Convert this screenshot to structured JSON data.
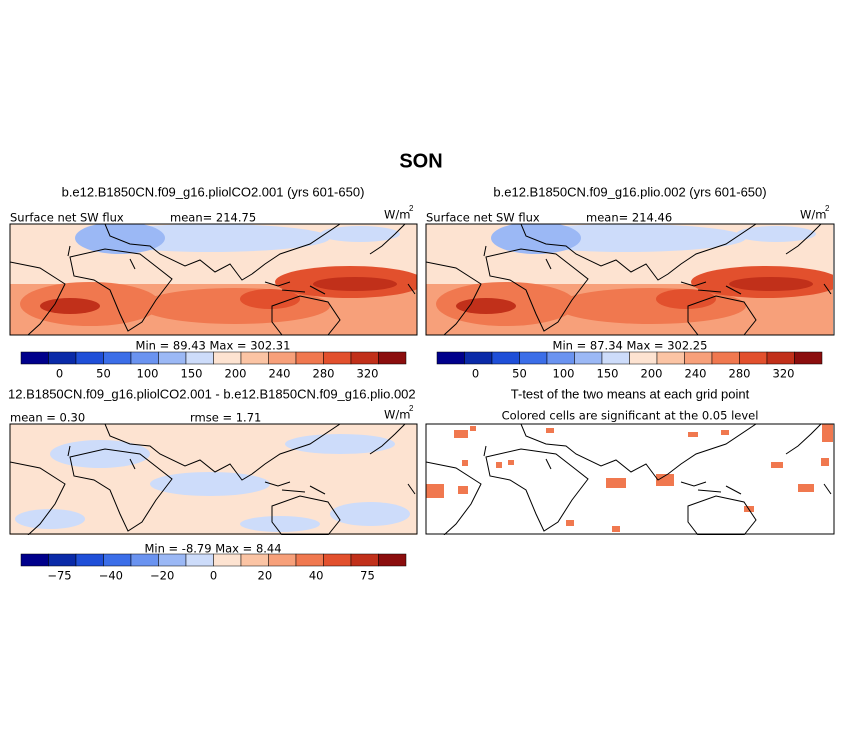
{
  "title": "SON",
  "panels": [
    {
      "title": "b.e12.B1850CN.f09_g16.pliolCO2.001 (yrs 601-650)",
      "left_label": "Surface net SW flux",
      "mean_label": "mean= 214.75",
      "units": "W/m",
      "units_exp": "2",
      "min_max": "Min =   89.43 Max =  302.31",
      "colorbar": {
        "colors": [
          "#00008b",
          "#0a2aa8",
          "#1f4fd8",
          "#3b6ee8",
          "#6a93f0",
          "#9bb8f5",
          "#cddcfa",
          "#fde3d1",
          "#fbc4a4",
          "#f7a07a",
          "#f0784f",
          "#e2502d",
          "#c1301a",
          "#8b0d0d"
        ],
        "labels": [
          "0",
          "50",
          "100",
          "150",
          "200",
          "240",
          "280",
          "320"
        ]
      }
    },
    {
      "title": "b.e12.B1850CN.f09_g16.plio.002 (yrs 601-650)",
      "left_label": "Surface net SW flux",
      "mean_label": "mean= 214.46",
      "units": "W/m",
      "units_exp": "2",
      "min_max": "Min =   87.34 Max =  302.25",
      "colorbar": {
        "colors": [
          "#00008b",
          "#0a2aa8",
          "#1f4fd8",
          "#3b6ee8",
          "#6a93f0",
          "#9bb8f5",
          "#cddcfa",
          "#fde3d1",
          "#fbc4a4",
          "#f7a07a",
          "#f0784f",
          "#e2502d",
          "#c1301a",
          "#8b0d0d"
        ],
        "labels": [
          "0",
          "50",
          "100",
          "150",
          "200",
          "240",
          "280",
          "320"
        ]
      }
    },
    {
      "title": "12.B1850CN.f09_g16.pliolCO2.001 - b.e12.B1850CN.f09_g16.plio.002",
      "left_label": "mean =   0.30",
      "mean_label": "rmse =   1.71",
      "units": "W/m",
      "units_exp": "2",
      "min_max": "Min =  -8.79 Max =   8.44",
      "colorbar": {
        "colors": [
          "#00008b",
          "#0a2aa8",
          "#1f4fd8",
          "#3b6ee8",
          "#6a93f0",
          "#9bb8f5",
          "#cddcfa",
          "#fde3d1",
          "#fbc4a4",
          "#f7a07a",
          "#f0784f",
          "#e2502d",
          "#c1301a",
          "#8b0d0d"
        ],
        "labels": [
          "−75",
          "−40",
          "−20",
          "0",
          "20",
          "40",
          "75"
        ]
      }
    },
    {
      "title": "T-test of the two means at each grid point",
      "subtitle": "Colored cells are significant at the 0.05 level"
    }
  ]
}
